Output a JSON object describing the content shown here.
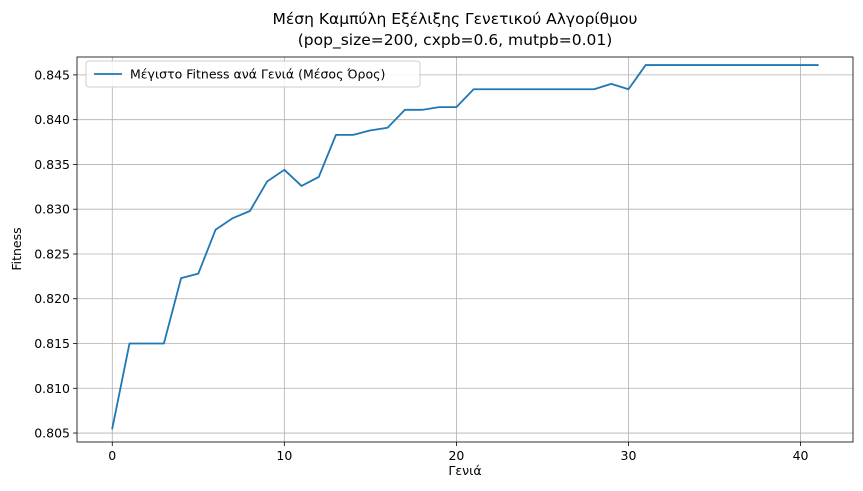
{
  "chart_data": {
    "type": "line",
    "title_line1": "Μέση Καμπύλη Εξέλιξης Γενετικού Αλγορίθμου",
    "title_line2": "(pop_size=200, cxpb=0.6, mutpb=0.01)",
    "xlabel": "Γενιά",
    "ylabel": "Fitness",
    "xlim": [
      -2.05,
      43.05
    ],
    "ylim": [
      0.804,
      0.847
    ],
    "xticks": [
      0,
      10,
      20,
      30,
      40
    ],
    "yticks": [
      0.805,
      0.81,
      0.815,
      0.82,
      0.825,
      0.83,
      0.835,
      0.84,
      0.845
    ],
    "xtick_labels": [
      "0",
      "10",
      "20",
      "30",
      "40"
    ],
    "ytick_labels": [
      "0.805",
      "0.810",
      "0.815",
      "0.820",
      "0.825",
      "0.830",
      "0.835",
      "0.840",
      "0.845"
    ],
    "grid": true,
    "legend_position": "upper-left",
    "series": [
      {
        "name": "Μέγιστο Fitness ανά Γενιά (Μέσος Όρος)",
        "color": "#1f77b4",
        "x": [
          0,
          1,
          2,
          3,
          4,
          5,
          6,
          7,
          8,
          9,
          10,
          11,
          12,
          13,
          14,
          15,
          16,
          17,
          18,
          19,
          20,
          21,
          22,
          23,
          24,
          25,
          26,
          27,
          28,
          29,
          30,
          31,
          32,
          33,
          34,
          35,
          36,
          37,
          38,
          39,
          40,
          41
        ],
        "y": [
          0.8055,
          0.815,
          0.815,
          0.815,
          0.8223,
          0.8228,
          0.8277,
          0.829,
          0.8298,
          0.8331,
          0.8344,
          0.8326,
          0.8336,
          0.8383,
          0.8383,
          0.8388,
          0.8391,
          0.8411,
          0.8411,
          0.8414,
          0.8414,
          0.8434,
          0.8434,
          0.8434,
          0.8434,
          0.8434,
          0.8434,
          0.8434,
          0.8434,
          0.844,
          0.8434,
          0.8461,
          0.8461,
          0.8461,
          0.8461,
          0.8461,
          0.8461,
          0.8461,
          0.8461,
          0.8461,
          0.8461,
          0.8461
        ]
      }
    ]
  }
}
